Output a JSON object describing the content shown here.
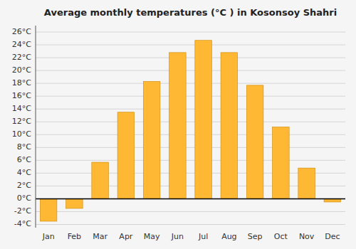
{
  "chart_data": {
    "type": "bar",
    "title": "Average monthly temperatures (°C ) in Kosonsoy Shahri",
    "categories": [
      "Jan",
      "Feb",
      "Mar",
      "Apr",
      "May",
      "Jun",
      "Jul",
      "Aug",
      "Sep",
      "Oct",
      "Nov",
      "Dec"
    ],
    "values": [
      -3.5,
      -1.5,
      5.7,
      13.5,
      18.3,
      22.8,
      24.7,
      22.8,
      17.7,
      11.2,
      4.8,
      -0.5
    ],
    "color": "#FFB833",
    "ylim": [
      -4.5,
      27
    ],
    "yticks": [
      {
        "value": -4,
        "label": "-4°C"
      },
      {
        "value": -2,
        "label": "-2°C"
      },
      {
        "value": 0,
        "label": "0°C"
      },
      {
        "value": 2,
        "label": "2°C"
      },
      {
        "value": 4,
        "label": "4°C"
      },
      {
        "value": 6,
        "label": "6°C"
      },
      {
        "value": 8,
        "label": "8°C"
      },
      {
        "value": 10,
        "label": "10°C"
      },
      {
        "value": 12,
        "label": "12°C"
      },
      {
        "value": 14,
        "label": "14°C"
      },
      {
        "value": 16,
        "label": "16°C"
      },
      {
        "value": 18,
        "label": "18°C"
      },
      {
        "value": 20,
        "label": "20°C"
      },
      {
        "value": 22,
        "label": "22°C"
      },
      {
        "value": 24,
        "label": "24°C"
      },
      {
        "value": 26,
        "label": "26°C"
      }
    ],
    "grid": true
  }
}
